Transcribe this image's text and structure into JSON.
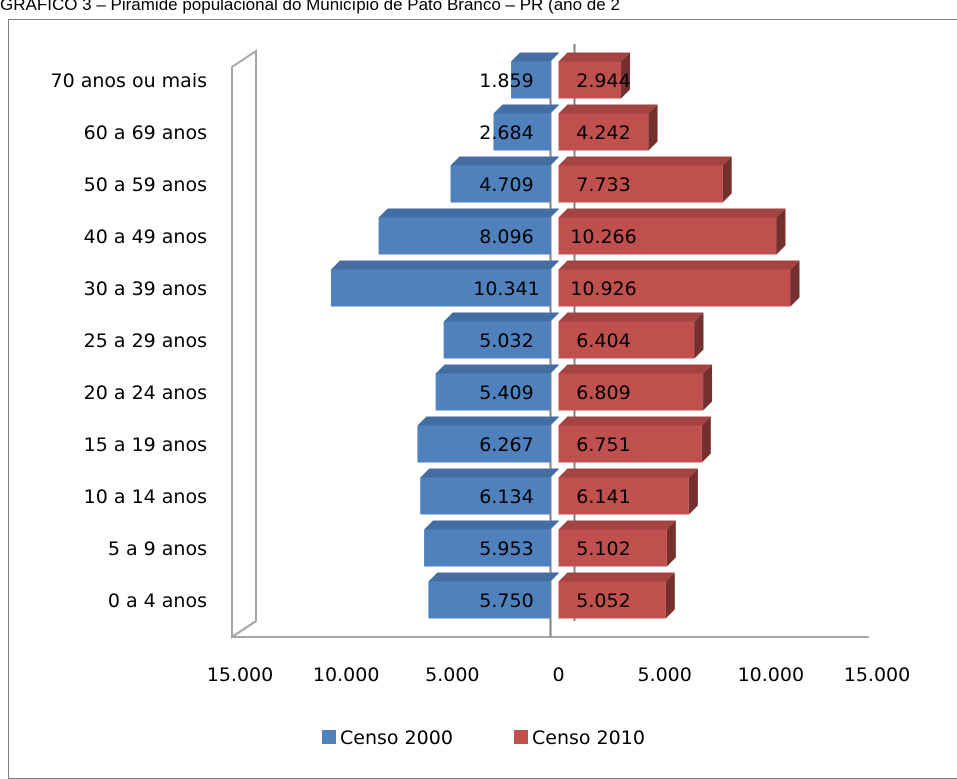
{
  "title": "GRÁFICO 3 – Pirâmide populacional do Município de Pato Branco – PR (ano de 2",
  "chart_data": {
    "type": "bar",
    "orientation": "horizontal-population-pyramid",
    "categories": [
      "0 a 4 anos",
      "5 a 9 anos",
      "10 a 14 anos",
      "15 a 19 anos",
      "20 a 24 anos",
      "25 a 29 anos",
      "30 a 39 anos",
      "40 a 49 anos",
      "50 a 59 anos",
      "60 a 69 anos",
      "70 anos ou mais"
    ],
    "series": [
      {
        "name": "Censo 2000",
        "color": "#4f81bd",
        "side": "left",
        "values": [
          5750,
          5953,
          6134,
          6267,
          5409,
          5032,
          10341,
          8096,
          4709,
          2684,
          1859
        ],
        "labels": [
          "5.750",
          "5.953",
          "6.134",
          "6.267",
          "5.409",
          "5.032",
          "10.341",
          "8.096",
          "4.709",
          "2.684",
          "1.859"
        ]
      },
      {
        "name": "Censo 2010",
        "color": "#c0504d",
        "side": "right",
        "values": [
          5052,
          5102,
          6141,
          6751,
          6809,
          6404,
          10926,
          10266,
          7733,
          4242,
          2944
        ],
        "labels": [
          "5.052",
          "5.102",
          "6.141",
          "6.751",
          "6.809",
          "6.404",
          "10.926",
          "10.266",
          "7.733",
          "4.242",
          "2.944"
        ]
      }
    ],
    "xlim": [
      -15000,
      15000
    ],
    "xticks": [
      -15000,
      -10000,
      -5000,
      0,
      5000,
      10000,
      15000
    ],
    "xtick_labels": [
      "15.000",
      "10.000",
      "5.000",
      "0",
      "5.000",
      "10.000",
      "15.000"
    ],
    "legend_position": "bottom",
    "grid": false,
    "style": "3d-clustered-bar"
  }
}
